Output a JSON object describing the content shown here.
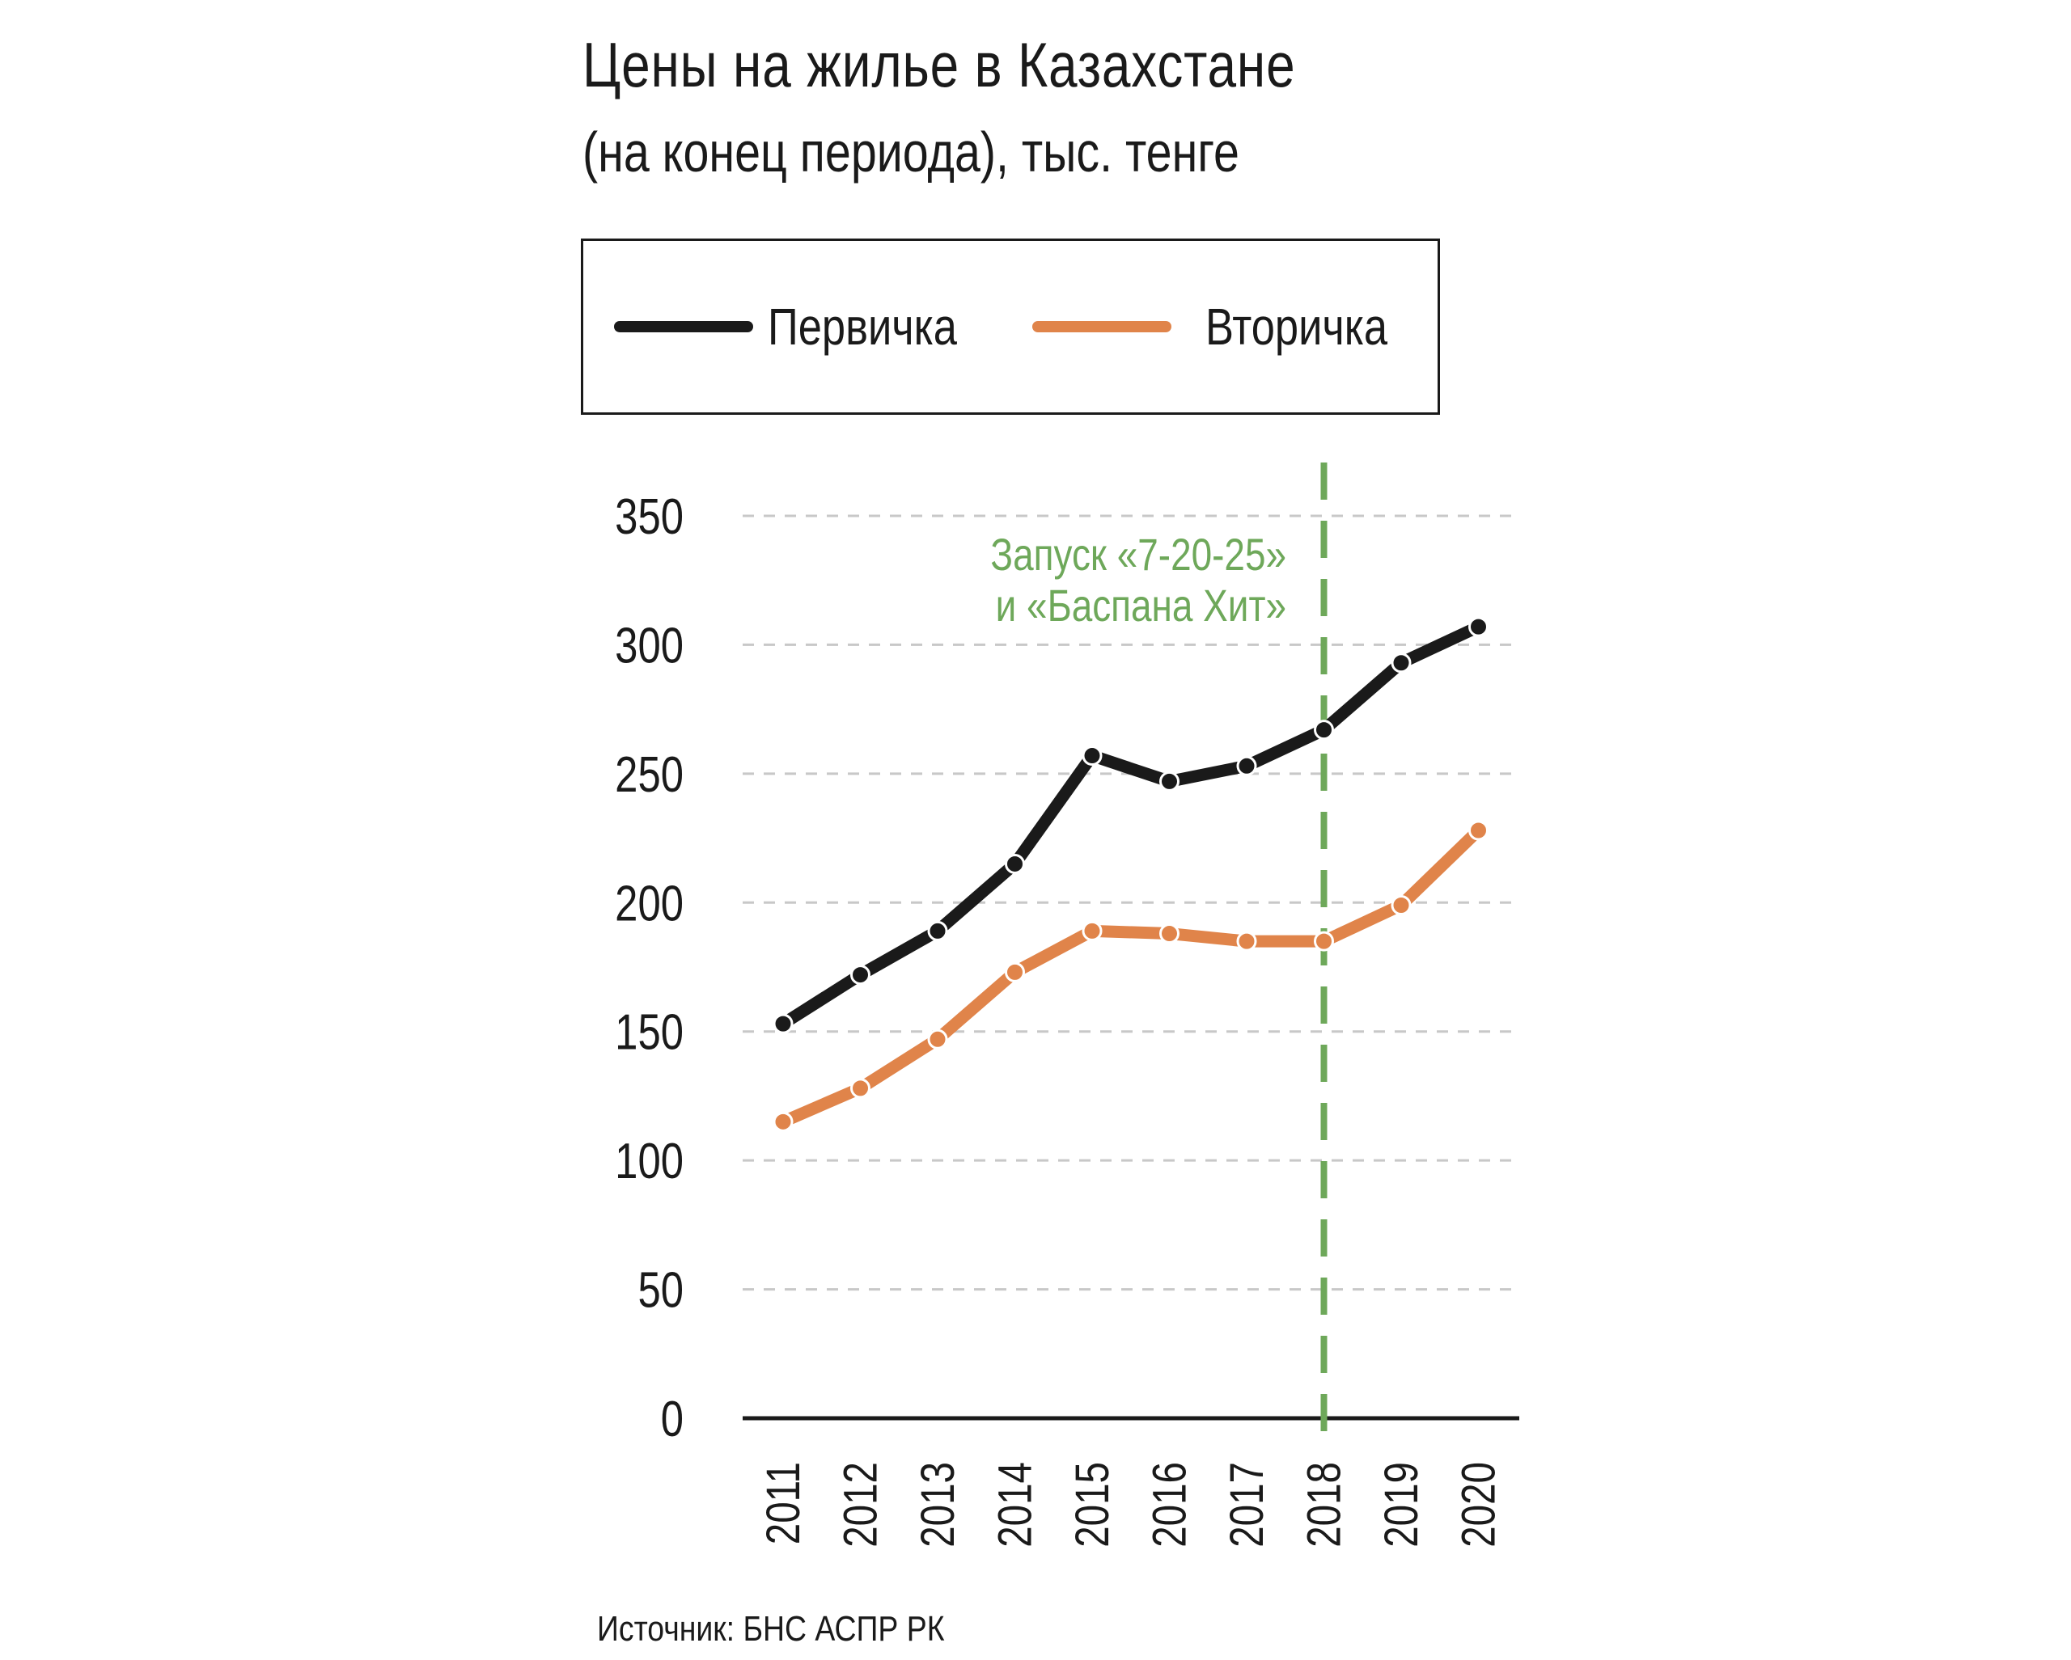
{
  "chart_data": {
    "type": "line",
    "title": "Цены на жилье в Казахстане",
    "subtitle": "(на конец периода), тыс. тенге",
    "categories": [
      "2011",
      "2012",
      "2013",
      "2014",
      "2015",
      "2016",
      "2017",
      "2018",
      "2019",
      "2020"
    ],
    "series": [
      {
        "name": "Первичка",
        "color": "#1a1a1a",
        "values": [
          153,
          172,
          189,
          215,
          257,
          247,
          253,
          267,
          293,
          307
        ]
      },
      {
        "name": "Вторичка",
        "color": "#e0844a",
        "values": [
          115,
          128,
          147,
          173,
          189,
          188,
          185,
          185,
          199,
          228
        ]
      }
    ],
    "ylim": [
      0,
      350
    ],
    "yticks": [
      0,
      50,
      100,
      150,
      200,
      250,
      300,
      350
    ],
    "grid": true,
    "gridline_color": "#c8c8c8",
    "legend_position": "top",
    "annotation": {
      "category": "2018",
      "color": "#6ea85a",
      "lines": [
        "Запуск «7-20-25»",
        "и «Баспана Хит»"
      ]
    },
    "source": "Источник: БНС АСПР РК"
  }
}
